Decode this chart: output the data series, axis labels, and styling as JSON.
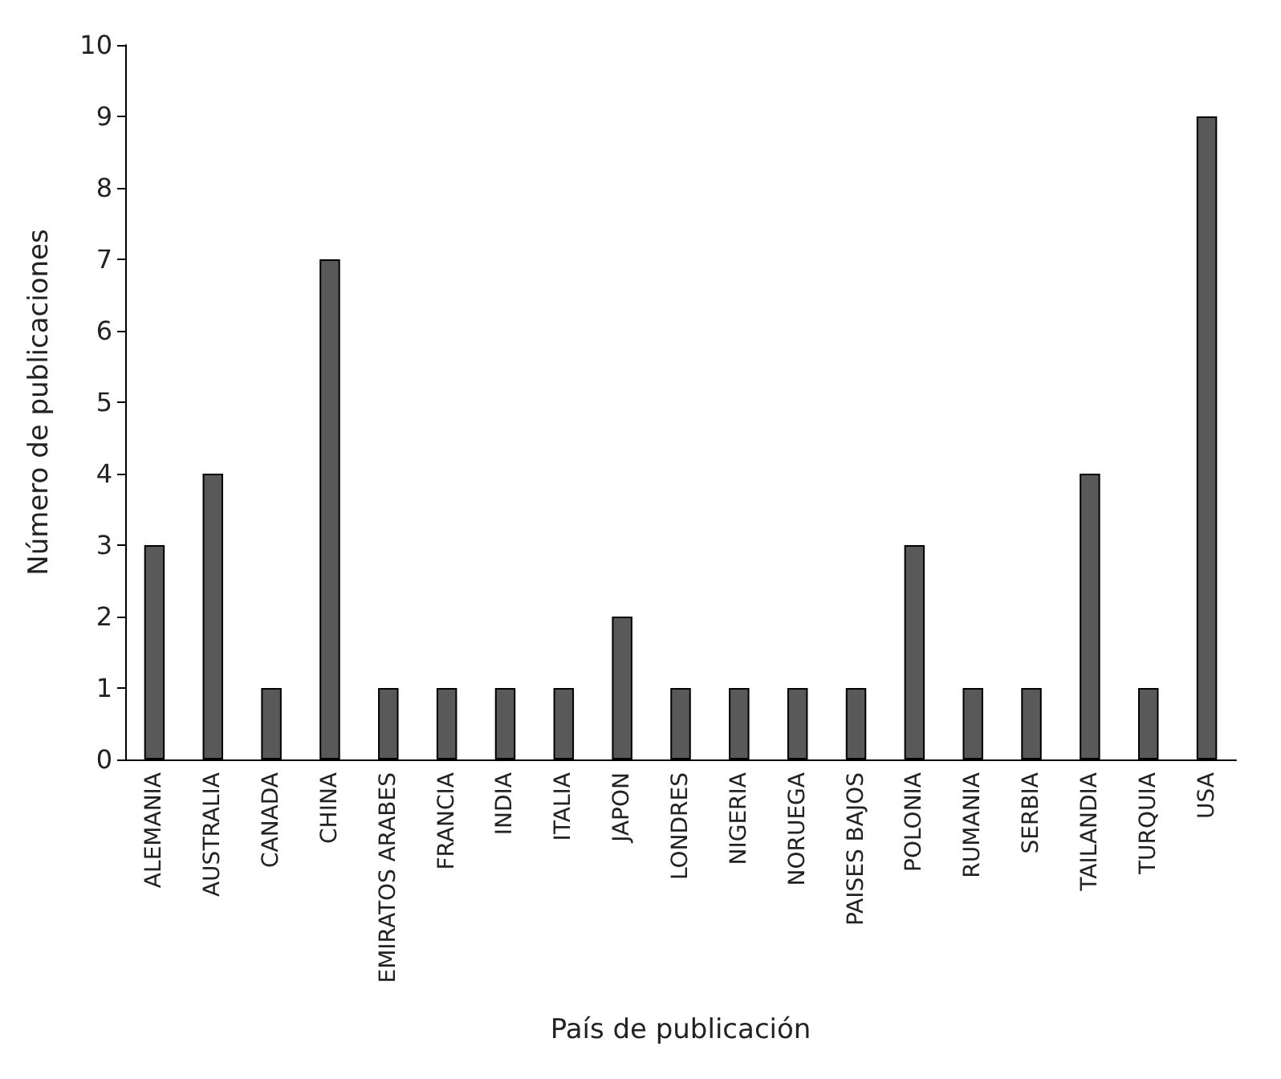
{
  "chart_data": {
    "type": "bar",
    "xlabel": "País de publicación",
    "ylabel": "Número de publicaciones",
    "categories": [
      "ALEMANIA",
      "AUSTRALIA",
      "CANADA",
      "CHINA",
      "EMIRATOS ARABES",
      "FRANCIA",
      "INDIA",
      "ITALIA",
      "JAPON",
      "LONDRES",
      "NIGERIA",
      "NORUEGA",
      "PAISES BAJOS",
      "POLONIA",
      "RUMANIA",
      "SERBIA",
      "TAILANDIA",
      "TURQUIA",
      "USA"
    ],
    "values": [
      3,
      4,
      1,
      7,
      1,
      1,
      1,
      1,
      2,
      1,
      1,
      1,
      1,
      3,
      1,
      1,
      4,
      1,
      9
    ],
    "color": "#595959",
    "ylim": [
      0,
      10
    ],
    "yticks": [
      0,
      1,
      2,
      3,
      4,
      5,
      6,
      7,
      8,
      9,
      10
    ]
  }
}
